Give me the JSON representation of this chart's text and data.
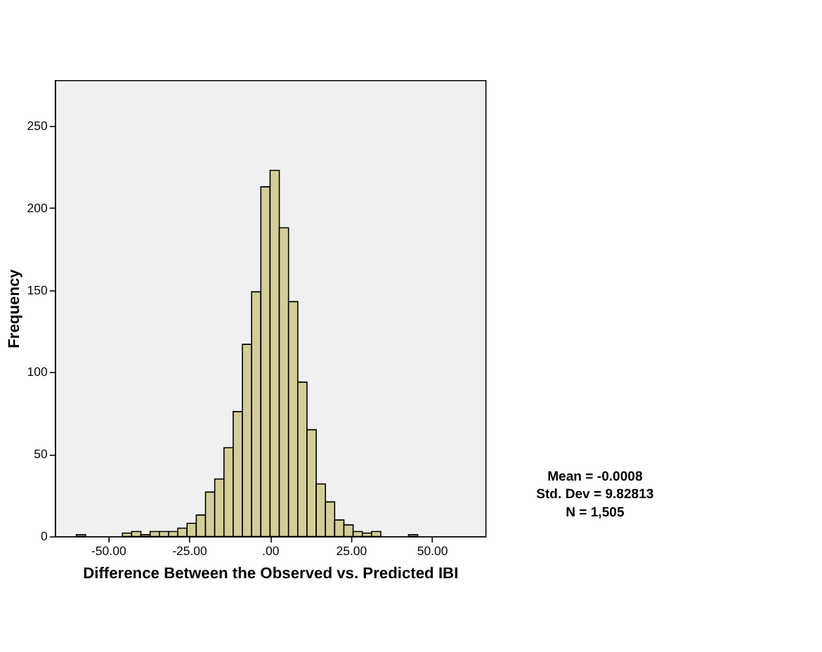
{
  "chart_data": {
    "type": "histogram",
    "xlabel": "Difference Between the Observed vs. Predicted IBI",
    "ylabel": "Frequency",
    "bins": [
      -59.85,
      -57.0,
      -54.15,
      -51.3,
      -48.45,
      -45.6,
      -42.75,
      -39.9,
      -37.05,
      -34.2,
      -31.35,
      -28.5,
      -25.65,
      -22.8,
      -19.95,
      -17.1,
      -14.25,
      -11.4,
      -8.55,
      -5.7,
      -2.85,
      0,
      2.85,
      5.7,
      8.55,
      11.4,
      14.25,
      17.1,
      19.95,
      22.8,
      25.65,
      28.5,
      31.35,
      34.2,
      37.05,
      39.9,
      42.75,
      45.6
    ],
    "values": [
      1,
      0,
      0,
      0,
      0,
      2,
      3,
      1,
      3,
      3,
      3,
      5,
      8,
      13,
      27,
      35,
      54,
      76,
      117,
      149,
      213,
      223,
      188,
      143,
      94,
      65,
      32,
      21,
      10,
      7,
      3,
      2,
      3,
      0,
      0,
      0,
      1
    ],
    "color": "#d3ce97",
    "xlim": [
      -66.5,
      66.5
    ],
    "ylim": [
      0,
      278
    ],
    "xticks": [
      {
        "value": -50,
        "label": "-50.00"
      },
      {
        "value": -25,
        "label": "-25.00"
      },
      {
        "value": 0,
        "label": ".00"
      },
      {
        "value": 25,
        "label": "25.00"
      },
      {
        "value": 50,
        "label": "50.00"
      }
    ],
    "yticks": [
      0,
      50,
      100,
      150,
      200,
      250
    ],
    "grid": false,
    "annotations": [
      "Mean = -0.0008",
      "Std. Dev = 9.82813",
      "N = 1,505"
    ]
  }
}
